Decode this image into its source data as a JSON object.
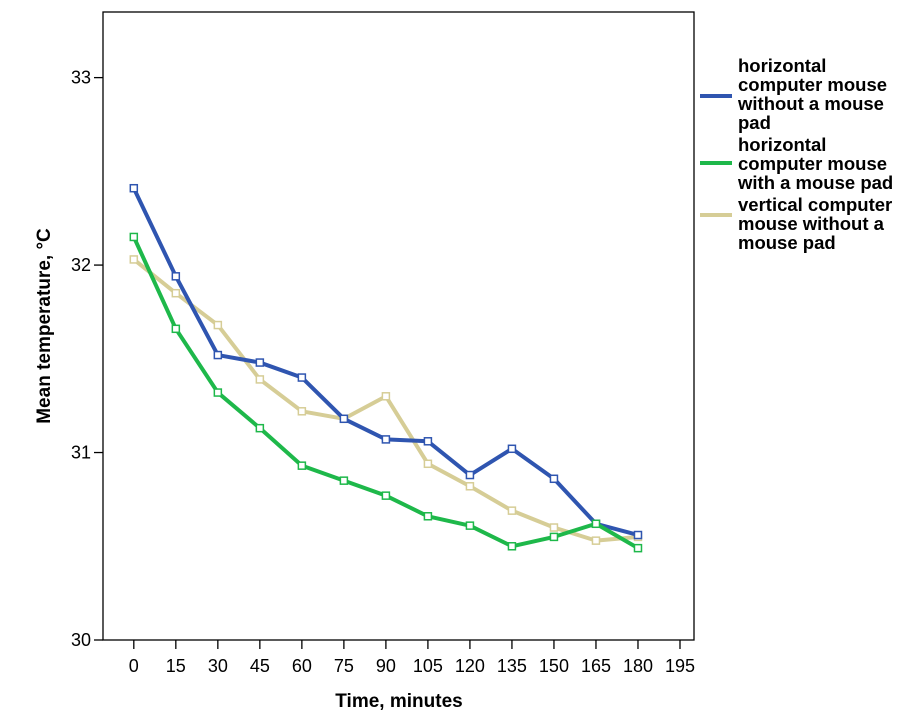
{
  "chart_data": {
    "type": "line",
    "xlabel": "Time, minutes",
    "ylabel": "Mean temperature, °C",
    "x": [
      0,
      15,
      30,
      45,
      60,
      75,
      90,
      105,
      120,
      135,
      150,
      165,
      180
    ],
    "x_ticks": [
      0,
      15,
      30,
      45,
      60,
      75,
      90,
      105,
      120,
      135,
      150,
      165,
      180,
      195
    ],
    "y_ticks": [
      30,
      31,
      32,
      33
    ],
    "xlim": [
      -11,
      200
    ],
    "ylim": [
      30,
      33.35
    ],
    "grid": false,
    "legend_position": "right",
    "series": [
      {
        "name": "horizontal computer mouse without a mouse pad",
        "color": "#2f55b0",
        "values": [
          32.41,
          31.94,
          31.52,
          31.48,
          31.4,
          31.18,
          31.07,
          31.06,
          30.88,
          31.02,
          30.86,
          30.62,
          30.56
        ]
      },
      {
        "name": "horizontal computer mouse with a mouse pad",
        "color": "#1eb84a",
        "values": [
          32.15,
          31.66,
          31.32,
          31.13,
          30.93,
          30.85,
          30.77,
          30.66,
          30.61,
          30.5,
          30.55,
          30.62,
          30.49
        ]
      },
      {
        "name": "vertical computer mouse without a mouse pad",
        "color": "#d6cd96",
        "values": [
          32.03,
          31.85,
          31.68,
          31.39,
          31.22,
          31.18,
          31.3,
          30.94,
          30.82,
          30.69,
          30.6,
          30.53,
          30.55
        ]
      }
    ]
  }
}
